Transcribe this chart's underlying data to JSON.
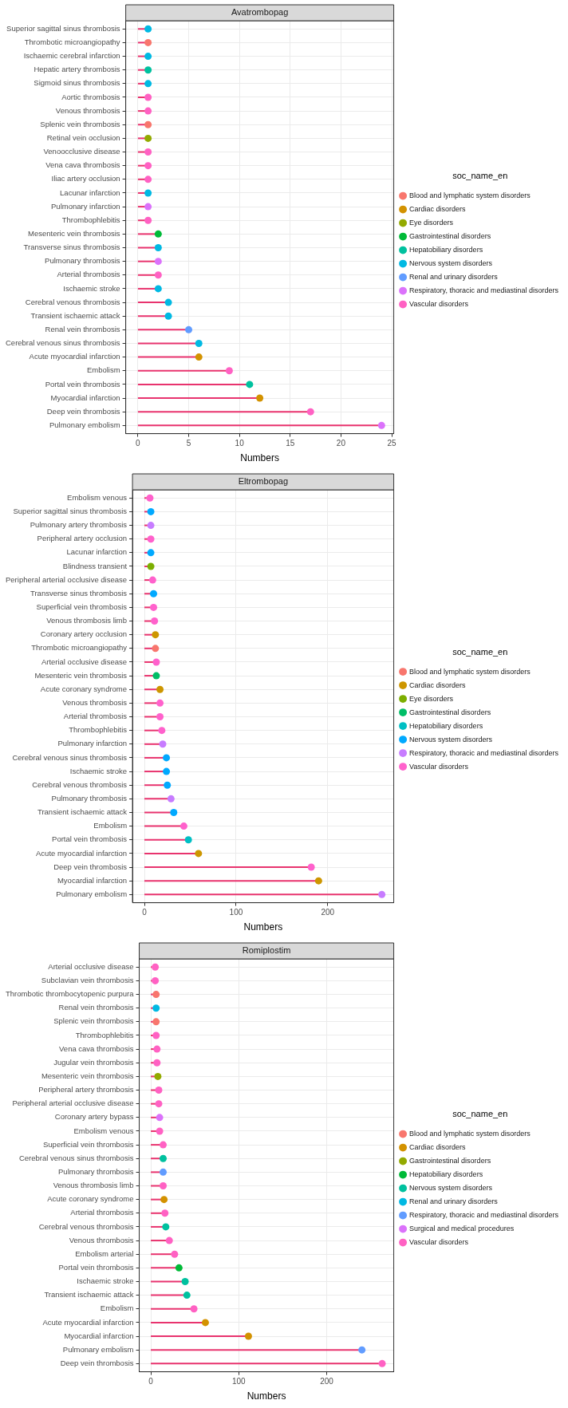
{
  "chart_data": [
    {
      "type": "lollipop",
      "orientation": "horizontal",
      "title": "Avatrombopag",
      "xlabel": "Numbers",
      "legend_title": "soc_name_en",
      "legend": "right",
      "grid": true,
      "xlim": [
        -1.2,
        25.2
      ],
      "xticks": [
        0,
        5,
        10,
        15,
        20,
        25
      ],
      "categories": [
        "Superior sagittal sinus thrombosis",
        "Thrombotic microangiopathy",
        "Ischaemic cerebral infarction",
        "Hepatic artery thrombosis",
        "Sigmoid sinus thrombosis",
        "Aortic thrombosis",
        "Venous thrombosis",
        "Splenic vein thrombosis",
        "Retinal vein occlusion",
        "Venoocclusive disease",
        "Vena cava thrombosis",
        "Iliac artery occlusion",
        "Lacunar infarction",
        "Pulmonary infarction",
        "Thrombophlebitis",
        "Mesenteric vein thrombosis",
        "Transverse sinus thrombosis",
        "Pulmonary thrombosis",
        "Arterial thrombosis",
        "Ischaemic stroke",
        "Cerebral venous thrombosis",
        "Transient ischaemic attack",
        "Renal vein thrombosis",
        "Cerebral venous sinus thrombosis",
        "Acute myocardial infarction",
        "Embolism",
        "Portal vein thrombosis",
        "Myocardial infarction",
        "Deep vein thrombosis",
        "Pulmonary embolism"
      ],
      "series": [
        {
          "name": "Blood and lymphatic system disorders",
          "color": "#f8766d",
          "values": [
            null,
            1,
            null,
            null,
            null,
            null,
            null,
            1,
            null,
            null,
            null,
            null,
            null,
            null,
            null,
            null,
            null,
            null,
            null,
            null,
            null,
            null,
            null,
            null,
            null,
            null,
            null,
            null,
            null,
            null
          ]
        },
        {
          "name": "Cardiac disorders",
          "color": "#d39200",
          "values": [
            null,
            null,
            null,
            null,
            null,
            null,
            null,
            null,
            null,
            null,
            null,
            null,
            null,
            null,
            null,
            null,
            null,
            null,
            null,
            null,
            null,
            null,
            null,
            null,
            6,
            null,
            null,
            12,
            null,
            null
          ]
        },
        {
          "name": "Eye disorders",
          "color": "#93aa00",
          "values": [
            null,
            null,
            null,
            null,
            null,
            null,
            null,
            null,
            1,
            null,
            null,
            null,
            null,
            null,
            null,
            null,
            null,
            null,
            null,
            null,
            null,
            null,
            null,
            null,
            null,
            null,
            null,
            null,
            null,
            null
          ]
        },
        {
          "name": "Gastrointestinal disorders",
          "color": "#00ba38",
          "values": [
            null,
            null,
            null,
            null,
            null,
            null,
            null,
            null,
            null,
            null,
            null,
            null,
            null,
            null,
            null,
            2,
            null,
            null,
            null,
            null,
            null,
            null,
            null,
            null,
            null,
            null,
            null,
            null,
            null,
            null
          ]
        },
        {
          "name": "Hepatobiliary disorders",
          "color": "#00c19f",
          "values": [
            null,
            null,
            null,
            1,
            null,
            null,
            null,
            null,
            null,
            null,
            null,
            null,
            null,
            null,
            null,
            null,
            null,
            null,
            null,
            null,
            null,
            null,
            null,
            null,
            null,
            null,
            11,
            null,
            null,
            null
          ]
        },
        {
          "name": "Nervous system disorders",
          "color": "#00b9e3",
          "values": [
            1,
            null,
            1,
            null,
            1,
            null,
            null,
            null,
            null,
            null,
            null,
            null,
            1,
            null,
            null,
            null,
            2,
            null,
            null,
            2,
            3,
            3,
            null,
            6,
            null,
            null,
            null,
            null,
            null,
            null
          ]
        },
        {
          "name": "Renal and urinary disorders",
          "color": "#619cff",
          "values": [
            null,
            null,
            null,
            null,
            null,
            null,
            null,
            null,
            null,
            null,
            null,
            null,
            null,
            null,
            null,
            null,
            null,
            null,
            null,
            null,
            null,
            null,
            5,
            null,
            null,
            null,
            null,
            null,
            null,
            null
          ]
        },
        {
          "name": "Respiratory, thoracic and mediastinal disorders",
          "color": "#db72fb",
          "values": [
            null,
            null,
            null,
            null,
            null,
            null,
            null,
            null,
            null,
            null,
            null,
            null,
            null,
            1,
            null,
            null,
            null,
            2,
            null,
            null,
            null,
            null,
            null,
            null,
            null,
            null,
            null,
            null,
            null,
            24
          ]
        },
        {
          "name": "Vascular disorders",
          "color": "#ff61c3",
          "values": [
            null,
            null,
            null,
            null,
            null,
            1,
            1,
            null,
            null,
            1,
            1,
            1,
            null,
            null,
            1,
            null,
            null,
            null,
            2,
            null,
            null,
            null,
            null,
            null,
            null,
            9,
            null,
            null,
            17,
            null
          ]
        }
      ]
    },
    {
      "type": "lollipop",
      "orientation": "horizontal",
      "title": "Eltrombopag",
      "xlabel": "Numbers",
      "legend_title": "soc_name_en",
      "legend": "right",
      "grid": true,
      "xlim": [
        -13,
        272
      ],
      "xticks": [
        0,
        100,
        200
      ],
      "categories": [
        "Embolism venous",
        "Superior sagittal sinus thrombosis",
        "Pulmonary artery thrombosis",
        "Peripheral artery occlusion",
        "Lacunar infarction",
        "Blindness transient",
        "Peripheral arterial occlusive disease",
        "Transverse sinus thrombosis",
        "Superficial vein thrombosis",
        "Venous thrombosis limb",
        "Coronary artery occlusion",
        "Thrombotic microangiopathy",
        "Arterial occlusive disease",
        "Mesenteric vein thrombosis",
        "Acute coronary syndrome",
        "Venous thrombosis",
        "Arterial thrombosis",
        "Thrombophlebitis",
        "Pulmonary infarction",
        "Cerebral venous sinus thrombosis",
        "Ischaemic stroke",
        "Cerebral venous thrombosis",
        "Pulmonary thrombosis",
        "Transient ischaemic attack",
        "Embolism",
        "Portal vein thrombosis",
        "Acute myocardial infarction",
        "Deep vein thrombosis",
        "Myocardial infarction",
        "Pulmonary embolism"
      ],
      "series": [
        {
          "name": "Blood and lymphatic system disorders",
          "color": "#f8766d",
          "values": [
            null,
            null,
            null,
            null,
            null,
            null,
            null,
            null,
            null,
            null,
            null,
            12,
            null,
            null,
            null,
            null,
            null,
            null,
            null,
            null,
            null,
            null,
            null,
            null,
            null,
            null,
            null,
            null,
            null,
            null
          ]
        },
        {
          "name": "Cardiac disorders",
          "color": "#cd9600",
          "values": [
            null,
            null,
            null,
            null,
            null,
            null,
            null,
            null,
            null,
            null,
            12,
            null,
            null,
            null,
            17,
            null,
            null,
            null,
            null,
            null,
            null,
            null,
            null,
            null,
            null,
            null,
            59,
            null,
            190,
            null
          ]
        },
        {
          "name": "Eye disorders",
          "color": "#7cae00",
          "values": [
            null,
            null,
            null,
            null,
            null,
            7,
            null,
            null,
            null,
            null,
            null,
            null,
            null,
            null,
            null,
            null,
            null,
            null,
            null,
            null,
            null,
            null,
            null,
            null,
            null,
            null,
            null,
            null,
            null,
            null
          ]
        },
        {
          "name": "Gastrointestinal disorders",
          "color": "#00be67",
          "values": [
            null,
            null,
            null,
            null,
            null,
            null,
            null,
            null,
            null,
            null,
            null,
            null,
            null,
            13,
            null,
            null,
            null,
            null,
            null,
            null,
            null,
            null,
            null,
            null,
            null,
            null,
            null,
            null,
            null,
            null
          ]
        },
        {
          "name": "Hepatobiliary disorders",
          "color": "#00bfc4",
          "values": [
            null,
            null,
            null,
            null,
            null,
            null,
            null,
            null,
            null,
            null,
            null,
            null,
            null,
            null,
            null,
            null,
            null,
            null,
            null,
            null,
            null,
            null,
            null,
            null,
            null,
            48,
            null,
            null,
            null,
            null
          ]
        },
        {
          "name": "Nervous system disorders",
          "color": "#00a9ff",
          "values": [
            null,
            7,
            null,
            null,
            7,
            null,
            null,
            10,
            null,
            null,
            null,
            null,
            null,
            null,
            null,
            null,
            null,
            null,
            null,
            24,
            24,
            25,
            null,
            32,
            null,
            null,
            null,
            null,
            null,
            null
          ]
        },
        {
          "name": "Respiratory, thoracic and mediastinal disorders",
          "color": "#c77cff",
          "values": [
            null,
            null,
            7,
            null,
            null,
            null,
            null,
            null,
            null,
            null,
            null,
            null,
            null,
            null,
            null,
            null,
            null,
            null,
            20,
            null,
            null,
            null,
            29,
            null,
            null,
            null,
            null,
            null,
            null,
            259
          ]
        },
        {
          "name": "Vascular disorders",
          "color": "#ff61cc",
          "values": [
            6,
            null,
            null,
            7,
            null,
            null,
            9,
            null,
            10,
            11,
            null,
            null,
            13,
            null,
            null,
            17,
            17,
            19,
            null,
            null,
            null,
            null,
            null,
            null,
            43,
            null,
            null,
            182,
            null,
            null
          ]
        }
      ]
    },
    {
      "type": "lollipop",
      "orientation": "horizontal",
      "title": "Romiplostim",
      "xlabel": "Numbers",
      "legend_title": "soc_name_en",
      "legend": "right",
      "grid": true,
      "xlim": [
        -13.2,
        276.2
      ],
      "xticks": [
        0,
        100,
        200
      ],
      "categories": [
        "Arterial occlusive disease",
        "Subclavian vein thrombosis",
        "Thrombotic thrombocytopenic purpura",
        "Renal vein thrombosis",
        "Splenic vein thrombosis",
        "Thrombophlebitis",
        "Vena cava thrombosis",
        "Jugular vein thrombosis",
        "Mesenteric vein thrombosis",
        "Peripheral artery thrombosis",
        "Peripheral arterial occlusive disease",
        "Coronary artery bypass",
        "Embolism venous",
        "Superficial vein thrombosis",
        "Cerebral venous sinus thrombosis",
        "Pulmonary thrombosis",
        "Venous thrombosis limb",
        "Acute coronary syndrome",
        "Arterial thrombosis",
        "Cerebral venous thrombosis",
        "Venous thrombosis",
        "Embolism arterial",
        "Portal vein thrombosis",
        "Ischaemic stroke",
        "Transient ischaemic attack",
        "Embolism",
        "Acute myocardial infarction",
        "Myocardial infarction",
        "Pulmonary embolism",
        "Deep vein thrombosis"
      ],
      "series": [
        {
          "name": "Blood and lymphatic system disorders",
          "color": "#f8766d",
          "values": [
            null,
            null,
            6,
            null,
            6,
            null,
            null,
            null,
            null,
            null,
            null,
            null,
            null,
            null,
            null,
            null,
            null,
            null,
            null,
            null,
            null,
            null,
            null,
            null,
            null,
            null,
            null,
            null,
            null,
            null
          ]
        },
        {
          "name": "Cardiac disorders",
          "color": "#d39200",
          "values": [
            null,
            null,
            null,
            null,
            null,
            null,
            null,
            null,
            null,
            null,
            null,
            null,
            null,
            null,
            null,
            null,
            null,
            15,
            null,
            null,
            null,
            null,
            null,
            null,
            null,
            null,
            62,
            111,
            null,
            null
          ]
        },
        {
          "name": "Gastrointestinal disorders",
          "color": "#93aa00",
          "values": [
            null,
            null,
            null,
            null,
            null,
            null,
            null,
            null,
            8,
            null,
            null,
            null,
            null,
            null,
            null,
            null,
            null,
            null,
            null,
            null,
            null,
            null,
            null,
            null,
            null,
            null,
            null,
            null,
            null,
            null
          ]
        },
        {
          "name": "Hepatobiliary disorders",
          "color": "#00ba38",
          "values": [
            null,
            null,
            null,
            null,
            null,
            null,
            null,
            null,
            null,
            null,
            null,
            null,
            null,
            null,
            null,
            null,
            null,
            null,
            null,
            null,
            null,
            null,
            32,
            null,
            null,
            null,
            null,
            null,
            null,
            null
          ]
        },
        {
          "name": "Nervous system disorders",
          "color": "#00c19f",
          "values": [
            null,
            null,
            null,
            null,
            null,
            null,
            null,
            null,
            null,
            null,
            null,
            null,
            null,
            null,
            14,
            null,
            null,
            null,
            null,
            17,
            null,
            null,
            null,
            39,
            41,
            null,
            null,
            null,
            null,
            null
          ]
        },
        {
          "name": "Renal and urinary disorders",
          "color": "#00b9e3",
          "values": [
            null,
            null,
            null,
            6,
            null,
            null,
            null,
            null,
            null,
            null,
            null,
            null,
            null,
            null,
            null,
            null,
            null,
            null,
            null,
            null,
            null,
            null,
            null,
            null,
            null,
            null,
            null,
            null,
            null,
            null
          ]
        },
        {
          "name": "Respiratory, thoracic and mediastinal disorders",
          "color": "#619cff",
          "values": [
            null,
            null,
            null,
            null,
            null,
            null,
            null,
            null,
            null,
            null,
            null,
            null,
            null,
            null,
            null,
            14,
            null,
            null,
            null,
            null,
            null,
            null,
            null,
            null,
            null,
            null,
            null,
            null,
            240,
            null
          ]
        },
        {
          "name": "Surgical and medical procedures",
          "color": "#db72fb",
          "values": [
            null,
            null,
            null,
            null,
            null,
            null,
            null,
            null,
            null,
            null,
            null,
            10,
            null,
            null,
            null,
            null,
            null,
            null,
            null,
            null,
            null,
            null,
            null,
            null,
            null,
            null,
            null,
            null,
            null,
            null
          ]
        },
        {
          "name": "Vascular disorders",
          "color": "#ff61c3",
          "values": [
            5,
            5,
            null,
            null,
            null,
            6,
            7,
            7,
            null,
            9,
            9,
            null,
            10,
            14,
            null,
            null,
            14,
            null,
            16,
            null,
            21,
            27,
            null,
            null,
            null,
            49,
            null,
            null,
            null,
            263
          ]
        }
      ]
    }
  ]
}
